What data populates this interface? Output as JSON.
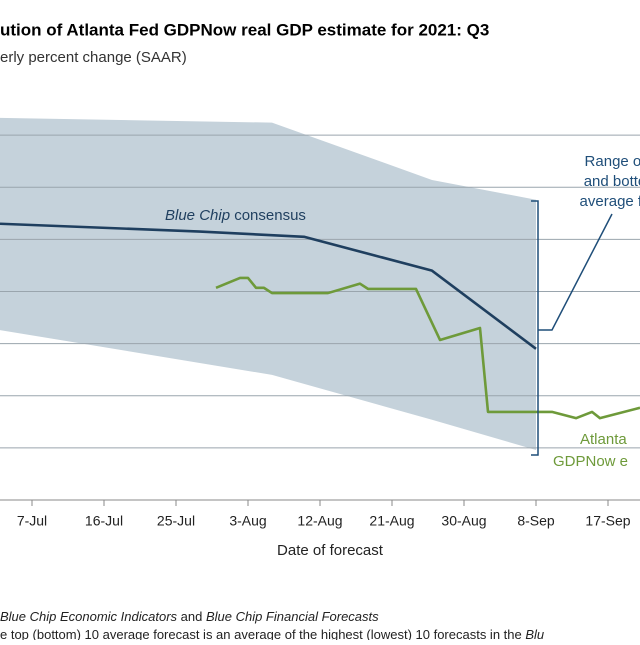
{
  "chart_data": {
    "type": "line",
    "title": "ution of Atlanta Fed GDPNow real GDP estimate for 2021: Q3",
    "subtitle": "erly percent change (SAAR)",
    "x_label": "Date of forecast",
    "xticks": [
      "7-Jul",
      "16-Jul",
      "25-Jul",
      "3-Aug",
      "12-Aug",
      "21-Aug",
      "30-Aug",
      "8-Sep",
      "17-Sep"
    ],
    "xlim": [
      "3-Jul",
      "21-Sep"
    ],
    "ylim": [
      2,
      10
    ],
    "yticks": [
      3,
      4,
      5,
      6,
      7,
      8,
      9
    ],
    "grid": true,
    "band": {
      "color": "#c5d2db",
      "x": [
        "3-Jul",
        "6-Aug",
        "26-Aug",
        "8-Sep"
      ],
      "upper": [
        9.33,
        9.24,
        8.14,
        7.76
      ],
      "lower": [
        5.26,
        4.4,
        3.54,
        2.96
      ]
    },
    "series": [
      {
        "name": "Blue Chip consensus",
        "color": "#1f3f5f",
        "x": [
          "3-Jul",
          "28-Jul",
          "10-Aug",
          "26-Aug",
          "8-Sep"
        ],
        "values": [
          7.3,
          7.15,
          7.05,
          6.4,
          4.9
        ]
      },
      {
        "name": "GDPNow",
        "color": "#6e9a3a",
        "x": [
          "30-Jul",
          "2-Aug",
          "3-Aug",
          "4-Aug",
          "5-Aug",
          "6-Aug",
          "13-Aug",
          "17-Aug",
          "18-Aug",
          "24-Aug",
          "27-Aug",
          "1-Sep",
          "2-Sep",
          "10-Sep",
          "13-Sep",
          "15-Sep",
          "16-Sep",
          "21-Sep"
        ],
        "values": [
          6.07,
          6.26,
          6.26,
          6.07,
          6.07,
          5.97,
          5.97,
          6.15,
          6.05,
          6.05,
          5.07,
          5.3,
          3.69,
          3.69,
          3.57,
          3.69,
          3.57,
          3.77
        ]
      }
    ],
    "annotations": {
      "blue_chip": [
        "Blue Chip",
        " consensus"
      ],
      "range": [
        "Range of",
        "and botto",
        "average fo"
      ],
      "gdpnow": [
        "Atlanta",
        "GDPNow e"
      ]
    },
    "footnotes": [
      [
        "Blue Chip Economic Indicators",
        " and ",
        "Blue Chip Financial Forecasts"
      ],
      [
        "e top (bottom) 10 average forecast is an average of the highest (lowest) 10 forecasts in the ",
        "Blu"
      ]
    ]
  }
}
